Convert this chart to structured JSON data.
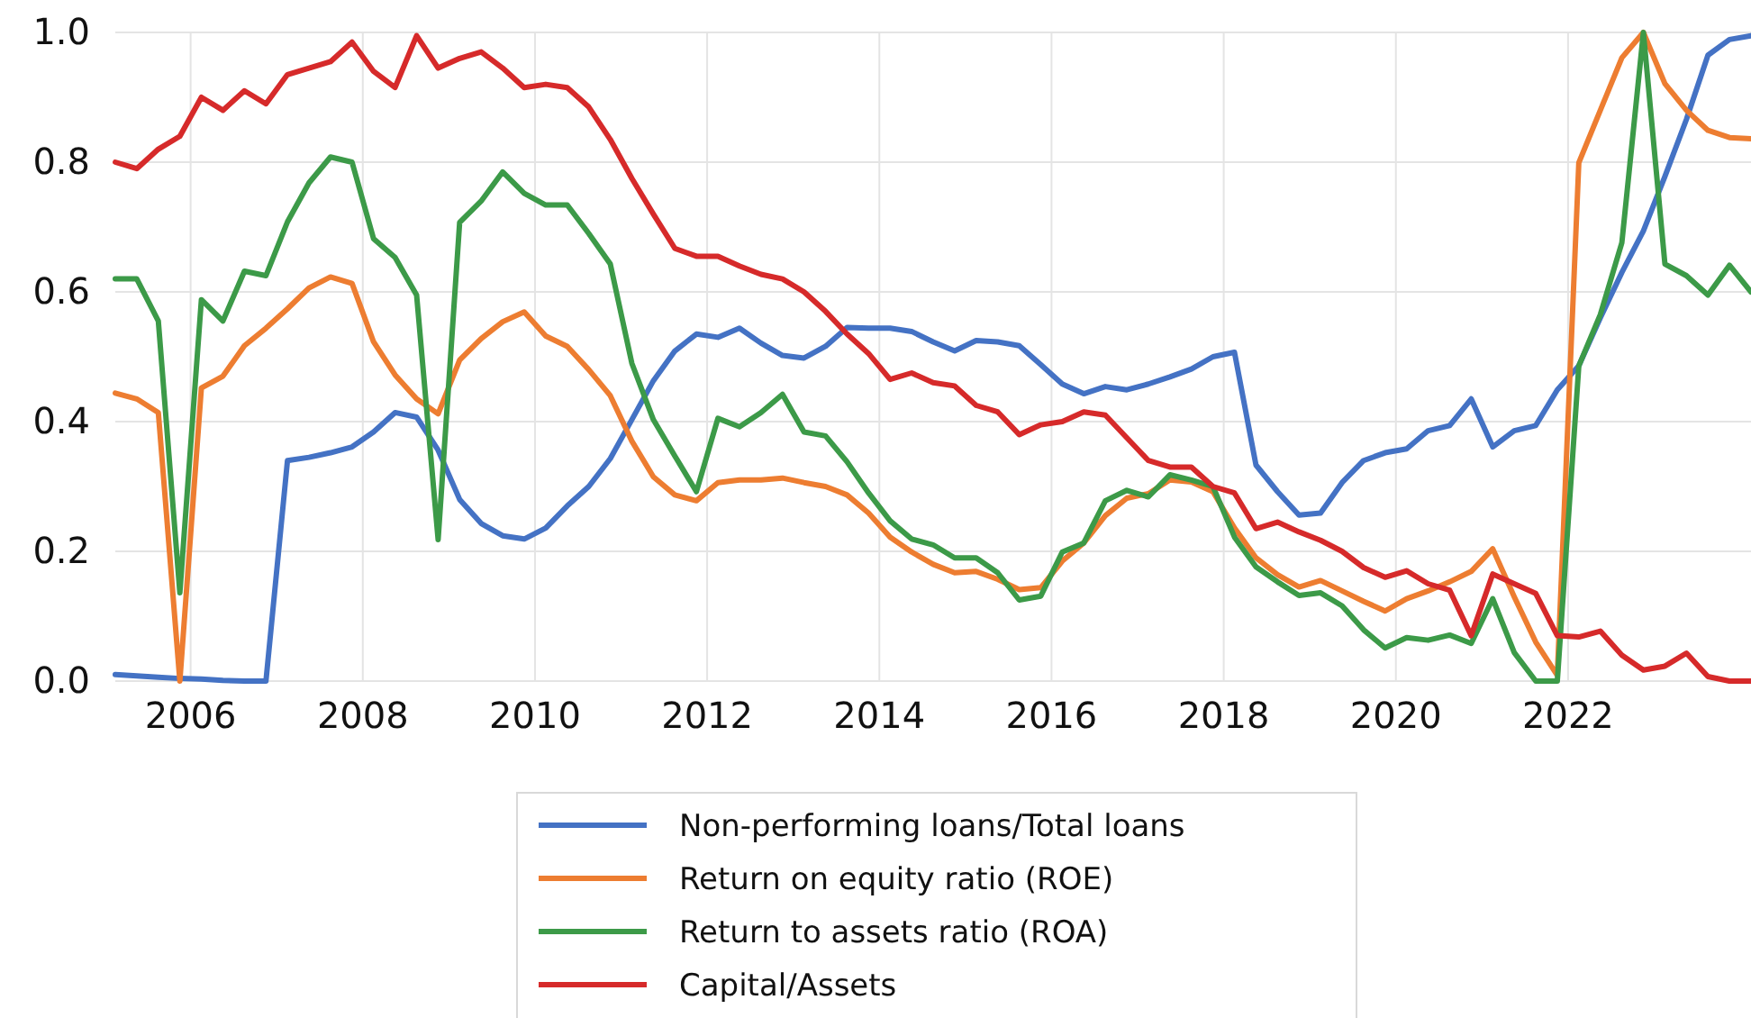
{
  "chart_data": {
    "type": "line",
    "x": [
      2005.125,
      2005.375,
      2005.625,
      2005.875,
      2006.125,
      2006.375,
      2006.625,
      2006.875,
      2007.125,
      2007.375,
      2007.625,
      2007.875,
      2008.125,
      2008.375,
      2008.625,
      2008.875,
      2009.125,
      2009.375,
      2009.625,
      2009.875,
      2010.125,
      2010.375,
      2010.625,
      2010.875,
      2011.125,
      2011.375,
      2011.625,
      2011.875,
      2012.125,
      2012.375,
      2012.625,
      2012.875,
      2013.125,
      2013.375,
      2013.625,
      2013.875,
      2014.125,
      2014.375,
      2014.625,
      2014.875,
      2015.125,
      2015.375,
      2015.625,
      2015.875,
      2016.125,
      2016.375,
      2016.625,
      2016.875,
      2017.125,
      2017.375,
      2017.625,
      2017.875,
      2018.125,
      2018.375,
      2018.625,
      2018.875,
      2019.125,
      2019.375,
      2019.625,
      2019.875,
      2020.125,
      2020.375,
      2020.625,
      2020.875,
      2021.125,
      2021.375,
      2021.625,
      2021.875,
      2022.125,
      2022.375,
      2022.625,
      2022.875,
      2023.125,
      2023.375,
      2023.625,
      2023.875,
      2024.125
    ],
    "series": [
      {
        "name": "Non-performing loans/Total loans",
        "color": "#4472c4",
        "values": [
          0.01,
          0.008,
          0.006,
          0.004,
          0.003,
          0.001,
          0,
          0,
          0.34,
          0.345,
          0.352,
          0.361,
          0.384,
          0.414,
          0.407,
          0.356,
          0.28,
          0.243,
          0.224,
          0.219,
          0.236,
          0.27,
          0.3,
          0.343,
          0.403,
          0.463,
          0.509,
          0.535,
          0.53,
          0.544,
          0.521,
          0.502,
          0.498,
          0.516,
          0.545,
          0.544,
          0.544,
          0.539,
          0.523,
          0.509,
          0.525,
          0.523,
          0.517,
          0.488,
          0.458,
          0.443,
          0.454,
          0.449,
          0.458,
          0.469,
          0.481,
          0.5,
          0.507,
          0.333,
          0.292,
          0.256,
          0.259,
          0.306,
          0.34,
          0.352,
          0.358,
          0.386,
          0.394,
          0.435,
          0.361,
          0.386,
          0.394,
          0.449,
          0.486,
          0.56,
          0.63,
          0.694,
          0.778,
          0.866,
          0.965,
          0.989,
          0.995
        ]
      },
      {
        "name": "Return on equity ratio (ROE)",
        "color": "#ed7d31",
        "values": [
          0.444,
          0.435,
          0.414,
          0,
          0.452,
          0.47,
          0.517,
          0.544,
          0.574,
          0.606,
          0.623,
          0.613,
          0.523,
          0.472,
          0.435,
          0.412,
          0.495,
          0.528,
          0.554,
          0.569,
          0.532,
          0.516,
          0.48,
          0.44,
          0.37,
          0.315,
          0.287,
          0.278,
          0.306,
          0.31,
          0.31,
          0.313,
          0.306,
          0.3,
          0.287,
          0.259,
          0.222,
          0.199,
          0.18,
          0.167,
          0.169,
          0.157,
          0.141,
          0.144,
          0.185,
          0.213,
          0.255,
          0.282,
          0.289,
          0.31,
          0.307,
          0.292,
          0.236,
          0.19,
          0.164,
          0.145,
          0.155,
          0.139,
          0.123,
          0.108,
          0.127,
          0.139,
          0.153,
          0.169,
          0.204,
          0.13,
          0.06,
          0.009,
          0.799,
          0.88,
          0.961,
          1.0,
          0.921,
          0.88,
          0.849,
          0.838,
          0.836
        ]
      },
      {
        "name": "Return to assets ratio (ROA)",
        "color": "#3c9a48",
        "values": [
          0.62,
          0.62,
          0.555,
          0.136,
          0.588,
          0.555,
          0.632,
          0.625,
          0.708,
          0.768,
          0.808,
          0.8,
          0.682,
          0.653,
          0.595,
          0.218,
          0.707,
          0.74,
          0.785,
          0.752,
          0.734,
          0.734,
          0.69,
          0.643,
          0.49,
          0.403,
          0.347,
          0.292,
          0.405,
          0.392,
          0.414,
          0.442,
          0.384,
          0.378,
          0.338,
          0.29,
          0.247,
          0.219,
          0.21,
          0.19,
          0.19,
          0.167,
          0.125,
          0.131,
          0.199,
          0.213,
          0.278,
          0.294,
          0.284,
          0.318,
          0.31,
          0.3,
          0.222,
          0.176,
          0.153,
          0.132,
          0.136,
          0.116,
          0.079,
          0.051,
          0.067,
          0.063,
          0.071,
          0.058,
          0.127,
          0.044,
          0,
          0,
          0.486,
          0.565,
          0.676,
          1.0,
          0.643,
          0.625,
          0.595,
          0.641,
          0.6
        ]
      },
      {
        "name": "Capital/Assets",
        "color": "#d62a2a",
        "values": [
          0.8,
          0.79,
          0.82,
          0.84,
          0.9,
          0.88,
          0.91,
          0.89,
          0.935,
          0.945,
          0.955,
          0.985,
          0.94,
          0.915,
          0.995,
          0.945,
          0.96,
          0.97,
          0.945,
          0.915,
          0.92,
          0.915,
          0.885,
          0.835,
          0.775,
          0.72,
          0.667,
          0.655,
          0.655,
          0.64,
          0.627,
          0.62,
          0.6,
          0.57,
          0.535,
          0.505,
          0.465,
          0.475,
          0.46,
          0.455,
          0.425,
          0.415,
          0.38,
          0.395,
          0.4,
          0.415,
          0.41,
          0.375,
          0.34,
          0.33,
          0.33,
          0.3,
          0.29,
          0.235,
          0.245,
          0.23,
          0.217,
          0.2,
          0.175,
          0.16,
          0.17,
          0.15,
          0.14,
          0.07,
          0.165,
          0.15,
          0.135,
          0.07,
          0.068,
          0.077,
          0.04,
          0.017,
          0.023,
          0.043,
          0.007,
          0,
          0
        ]
      }
    ],
    "xlim": [
      2005.125,
      2024.125
    ],
    "xticks": [
      2006,
      2008,
      2010,
      2012,
      2014,
      2016,
      2018,
      2020,
      2022
    ],
    "ylim": [
      0,
      1
    ],
    "yticks": [
      {
        "value": 0,
        "label": "0.0"
      },
      {
        "value": 0.2,
        "label": "0.2"
      },
      {
        "value": 0.4,
        "label": "0.4"
      },
      {
        "value": 0.6,
        "label": "0.6"
      },
      {
        "value": 0.8,
        "label": "0.8"
      },
      {
        "value": 1,
        "label": "1.0"
      }
    ],
    "grid": true,
    "legend": "bottom",
    "line_style": "solid",
    "marker": "none"
  }
}
